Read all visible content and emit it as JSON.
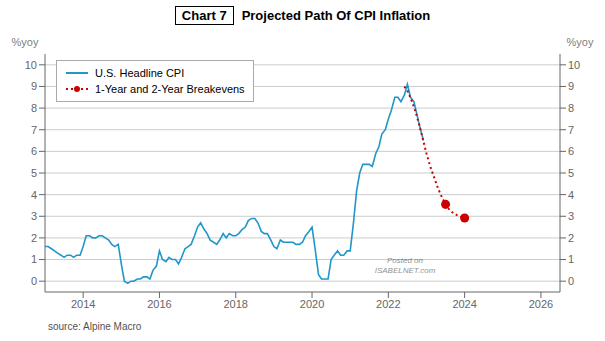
{
  "chart_data": {
    "type": "line",
    "title": "Projected Path Of CPI Inflation",
    "subtitle": "Chart 7",
    "y_label": "%yoy",
    "y2_label": "%yoy",
    "annotations": [
      "Posted on\nISABELNET.com",
      "source: Alpine Macro"
    ],
    "xlim": [
      2013.0,
      2026.5
    ],
    "xticks": [
      2014,
      2016,
      2018,
      2020,
      2022,
      2024,
      2026
    ],
    "ylim": [
      -0.5,
      10.5
    ],
    "yticks": [
      0,
      1,
      2,
      3,
      4,
      5,
      6,
      7,
      8,
      9,
      10
    ],
    "y2lim": [
      -0.5,
      10.5
    ],
    "y2ticks": [
      0,
      1,
      2,
      3,
      4,
      5,
      6,
      7,
      8,
      9,
      10
    ],
    "grid": true,
    "legend": "upper left",
    "series": [
      {
        "name": "U.S. Headline CPI",
        "color": "#2196C8",
        "line_style": "solid",
        "x": [
          2013.0,
          2013.08,
          2013.17,
          2013.25,
          2013.33,
          2013.42,
          2013.5,
          2013.58,
          2013.67,
          2013.75,
          2013.83,
          2013.92,
          2014.0,
          2014.08,
          2014.17,
          2014.25,
          2014.33,
          2014.42,
          2014.5,
          2014.58,
          2014.67,
          2014.75,
          2014.83,
          2014.92,
          2015.0,
          2015.08,
          2015.17,
          2015.25,
          2015.33,
          2015.42,
          2015.5,
          2015.58,
          2015.67,
          2015.75,
          2015.83,
          2015.92,
          2016.0,
          2016.08,
          2016.17,
          2016.25,
          2016.33,
          2016.42,
          2016.5,
          2016.58,
          2016.67,
          2016.75,
          2016.83,
          2016.92,
          2017.0,
          2017.08,
          2017.17,
          2017.25,
          2017.33,
          2017.42,
          2017.5,
          2017.58,
          2017.67,
          2017.75,
          2017.83,
          2017.92,
          2018.0,
          2018.08,
          2018.17,
          2018.25,
          2018.33,
          2018.42,
          2018.5,
          2018.58,
          2018.67,
          2018.75,
          2018.83,
          2018.92,
          2019.0,
          2019.08,
          2019.17,
          2019.25,
          2019.33,
          2019.42,
          2019.5,
          2019.58,
          2019.67,
          2019.75,
          2019.83,
          2019.92,
          2020.0,
          2020.08,
          2020.17,
          2020.25,
          2020.33,
          2020.42,
          2020.5,
          2020.58,
          2020.67,
          2020.75,
          2020.83,
          2020.92,
          2021.0,
          2021.08,
          2021.17,
          2021.25,
          2021.33,
          2021.42,
          2021.5,
          2021.58,
          2021.67,
          2021.75,
          2021.83,
          2021.92,
          2022.0,
          2022.08,
          2022.17,
          2022.25,
          2022.33,
          2022.42,
          2022.5,
          2022.58,
          2022.67,
          2022.75,
          2022.83,
          2022.92
        ],
        "values": [
          1.6,
          1.6,
          1.5,
          1.4,
          1.3,
          1.2,
          1.1,
          1.2,
          1.2,
          1.1,
          1.2,
          1.2,
          1.6,
          2.1,
          2.1,
          2.0,
          2.0,
          2.1,
          2.1,
          2.0,
          1.9,
          1.7,
          1.6,
          1.7,
          0.8,
          0.0,
          -0.1,
          0.0,
          0.0,
          0.1,
          0.1,
          0.2,
          0.2,
          0.1,
          0.5,
          0.7,
          1.4,
          1.0,
          0.9,
          1.1,
          1.0,
          1.0,
          0.8,
          1.1,
          1.5,
          1.6,
          1.7,
          2.1,
          2.5,
          2.7,
          2.4,
          2.2,
          1.9,
          1.8,
          1.7,
          1.9,
          2.2,
          2.0,
          2.2,
          2.1,
          2.1,
          2.2,
          2.4,
          2.5,
          2.8,
          2.9,
          2.9,
          2.7,
          2.3,
          2.2,
          2.2,
          1.9,
          1.6,
          1.5,
          1.9,
          1.8,
          1.8,
          1.8,
          1.8,
          1.7,
          1.7,
          1.8,
          2.1,
          2.3,
          2.5,
          1.5,
          0.3,
          0.1,
          0.1,
          0.1,
          1.0,
          1.2,
          1.4,
          1.2,
          1.2,
          1.4,
          1.4,
          2.6,
          4.2,
          5.0,
          5.4,
          5.4,
          5.4,
          5.3,
          5.9,
          6.2,
          6.8,
          7.0,
          7.5,
          7.9,
          8.5,
          8.5,
          8.3,
          8.6,
          9.1,
          8.5,
          8.3,
          7.7,
          7.1,
          6.5
        ]
      },
      {
        "name": "1-Year and 2-Year Breakevens",
        "color": "#cc0000",
        "line_style": "dotted",
        "marker": "o",
        "x": [
          2022.42,
          2022.5,
          2022.6,
          2022.7,
          2022.8,
          2022.9,
          2023.0,
          2023.1,
          2023.2,
          2023.3,
          2023.4,
          2023.5,
          2023.6,
          2023.7,
          2023.8,
          2023.9,
          2024.0
        ],
        "values": [
          9.0,
          8.8,
          8.4,
          7.9,
          7.3,
          6.6,
          5.9,
          5.3,
          4.8,
          4.3,
          3.9,
          3.55,
          3.3,
          3.15,
          3.05,
          2.97,
          2.92
        ],
        "marker_x": [
          2023.5,
          2024.0
        ],
        "marker_values": [
          3.55,
          2.92
        ]
      }
    ]
  }
}
